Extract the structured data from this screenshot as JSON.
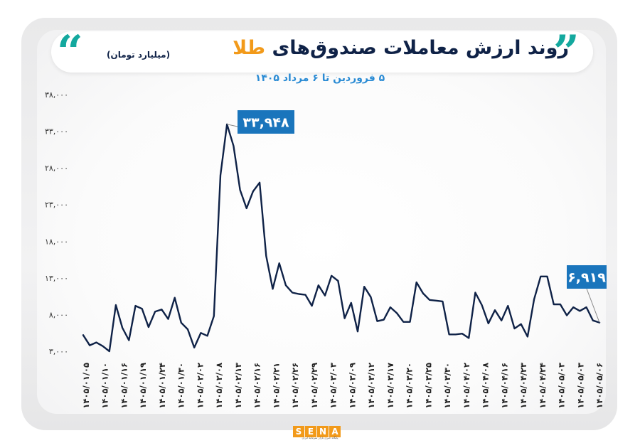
{
  "header": {
    "title_main": "روند ارزش معاملات صندوق‌های",
    "title_highlight": "طلا",
    "unit": "(میلیارد تومان)",
    "subtitle": "۵ فروردین تا ۶ مرداد ۱۴۰۵"
  },
  "colors": {
    "accent": "#f29a1a",
    "line": "#0f2247",
    "callout": "#1a75bc",
    "quote": "#13a89e",
    "subtitle": "#2a8bd4"
  },
  "icons": {
    "left": "quote-open-icon",
    "right": "quote-close-icon"
  },
  "logo": {
    "letters": [
      "S",
      "E",
      "N",
      "A"
    ],
    "tagline": "پایگاه خبری بازار سرمایه ایران"
  },
  "chart_data": {
    "type": "line",
    "ylim": [
      3000,
      38000
    ],
    "yticks": [
      3000,
      8000,
      13000,
      18000,
      23000,
      28000,
      33000,
      38000
    ],
    "ytick_labels": [
      "۳,۰۰۰",
      "۸,۰۰۰",
      "۱۳,۰۰۰",
      "۱۸,۰۰۰",
      "۲۳,۰۰۰",
      "۲۸,۰۰۰",
      "۳۳,۰۰۰",
      "۳۸,۰۰۰"
    ],
    "xtick_labels": [
      "۱۴۰۵/۰۱/۰۵",
      "۱۴۰۵/۰۱/۱۰",
      "۱۴۰۵/۰۱/۱۶",
      "۱۴۰۵/۰۱/۱۹",
      "۱۴۰۵/۰۱/۲۴",
      "۱۴۰۵/۰۱/۳۰",
      "۱۴۰۵/۰۲/۰۲",
      "۱۴۰۵/۰۲/۰۸",
      "۱۴۰۵/۰۲/۱۳",
      "۱۴۰۵/۰۲/۱۶",
      "۱۴۰۵/۰۲/۲۱",
      "۱۴۰۵/۰۲/۲۶",
      "۱۴۰۵/۰۲/۲۹",
      "۱۴۰۵/۰۳/۰۳",
      "۱۴۰۵/۰۳/۰۹",
      "۱۴۰۵/۰۳/۱۲",
      "۱۴۰۵/۰۳/۱۷",
      "۱۴۰۵/۰۳/۲۰",
      "۱۴۰۵/۰۳/۲۵",
      "۱۴۰۵/۰۳/۳۰",
      "۱۴۰۵/۰۴/۰۲",
      "۱۴۰۵/۰۴/۰۸",
      "۱۴۰۵/۰۴/۱۶",
      "۱۴۰۵/۰۴/۲۳",
      "۱۴۰۵/۰۴/۲۴",
      "۱۴۰۵/۰۵/۰۳",
      "۱۴۰۵/۰۵/۰۳",
      "۱۴۰۵/۰۵/۰۶"
    ],
    "values": [
      5200,
      3800,
      4200,
      3700,
      3000,
      9300,
      6200,
      4500,
      9200,
      8800,
      6300,
      8400,
      8700,
      7400,
      10300,
      6900,
      6000,
      3500,
      5500,
      5100,
      7800,
      27000,
      33948,
      31000,
      25000,
      22500,
      24800,
      26000,
      16000,
      11500,
      15000,
      12000,
      11000,
      10800,
      10700,
      9200,
      12000,
      10600,
      13300,
      12600,
      7500,
      9600,
      5700,
      11800,
      10400,
      7100,
      7300,
      9000,
      8200,
      7000,
      7000,
      12400,
      10900,
      10000,
      9900,
      9800,
      5300,
      5300,
      5400,
      4800,
      11000,
      9300,
      6800,
      8600,
      7200,
      9200,
      6100,
      6700,
      5000,
      10100,
      13200,
      13200,
      9400,
      9400,
      7900,
      9000,
      8500,
      9000,
      7200,
      6919
    ],
    "callouts": [
      {
        "label": "۳۳,۹۴۸",
        "index": 22,
        "value": 33948
      },
      {
        "label": "۶,۹۱۹",
        "index": 79,
        "value": 6919
      }
    ],
    "grid": false,
    "xlabel": "",
    "ylabel": ""
  }
}
